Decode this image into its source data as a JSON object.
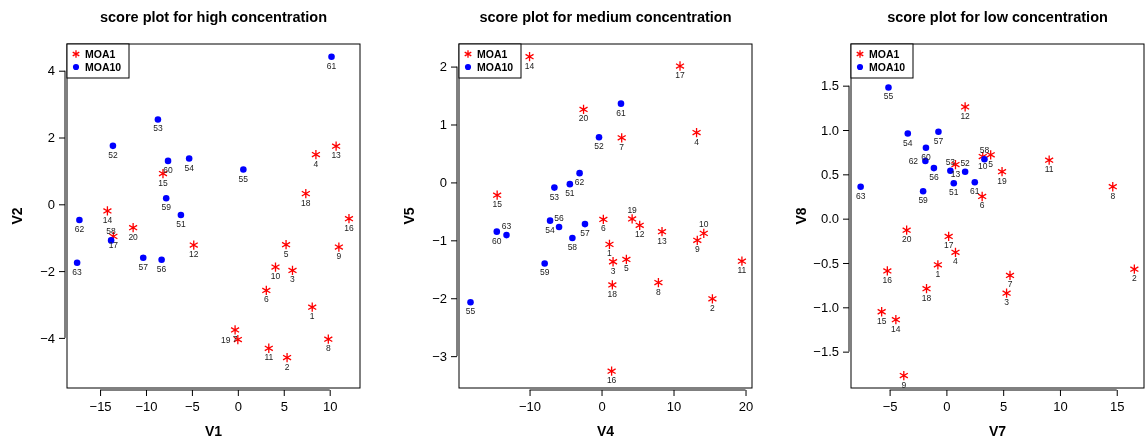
{
  "chart_data": [
    {
      "type": "scatter",
      "title": "score plot for high concentration",
      "xlabel": "V1",
      "ylabel": "V2",
      "xlim": [
        -18.6,
        13.3
      ],
      "ylim": [
        -5.5,
        4.8
      ],
      "xticks": [
        -15,
        -10,
        -5,
        0,
        5,
        10
      ],
      "yticks": [
        -4,
        -2,
        0,
        2,
        4
      ],
      "legend": "top left",
      "grid": false,
      "series": [
        {
          "name": "MOA1",
          "color": "#ff0000",
          "marker": "cross",
          "x": [
            8.1,
            5.36,
            5.95,
            8.5,
            5.25,
            3.1,
            -0.3,
            9.85,
            11.0,
            4.1,
            3.37,
            -4.8,
            10.7,
            -14.2,
            -8.15,
            12.1,
            -13.55,
            7.4,
            0.0,
            -11.4
          ],
          "values": [
            -3.08,
            -4.59,
            -1.98,
            1.49,
            -1.21,
            -2.58,
            -3.76,
            -4.04,
            -1.28,
            -1.88,
            -4.31,
            -1.22,
            1.74,
            -0.2,
            0.92,
            -0.43,
            -0.96,
            0.32,
            -4.05,
            -0.7
          ]
        },
        {
          "name": "MOA10",
          "color": "#0000ff",
          "marker": "circle",
          "x": [
            -6.2,
            -13.6,
            -8.7,
            -5.3,
            0.6,
            -8.3,
            -10.3,
            -13.8,
            -7.8,
            -7.6,
            10.2,
            -17.25,
            -17.5
          ],
          "values": [
            -0.32,
            1.75,
            2.54,
            1.37,
            1.04,
            -1.66,
            -1.6,
            -1.08,
            0.18,
            1.3,
            4.42,
            -0.47,
            -1.75
          ]
        }
      ],
      "annotations": [
        {
          "text": "1",
          "x": 8.1,
          "y": -3.08
        },
        {
          "text": "2",
          "x": 5.36,
          "y": -4.59
        },
        {
          "text": "3",
          "x": 5.95,
          "y": -1.98
        },
        {
          "text": "4",
          "x": 8.5,
          "y": 1.49
        },
        {
          "text": "5",
          "x": 5.25,
          "y": -1.21
        },
        {
          "text": "6",
          "x": 3.1,
          "y": -2.58
        },
        {
          "text": "7",
          "x": -0.3,
          "y": -3.76
        },
        {
          "text": "8",
          "x": 9.85,
          "y": -4.04
        },
        {
          "text": "9",
          "x": 11.0,
          "y": -1.28
        },
        {
          "text": "10",
          "x": 4.1,
          "y": -1.88
        },
        {
          "text": "11",
          "x": 3.37,
          "y": -4.31
        },
        {
          "text": "12",
          "x": -4.8,
          "y": -1.22
        },
        {
          "text": "13",
          "x": 10.7,
          "y": 1.74
        },
        {
          "text": "14",
          "x": -14.2,
          "y": -0.2
        },
        {
          "text": "15",
          "x": -8.15,
          "y": 0.92
        },
        {
          "text": "16",
          "x": 12.1,
          "y": -0.43
        },
        {
          "text": "17",
          "x": -13.55,
          "y": -0.96
        },
        {
          "text": "18",
          "x": 7.4,
          "y": 0.32
        },
        {
          "text": "19",
          "x": 0.0,
          "y": -4.05
        },
        {
          "text": "20",
          "x": -11.4,
          "y": -0.7
        },
        {
          "text": "51",
          "x": -6.2,
          "y": -0.32
        },
        {
          "text": "52",
          "x": -13.6,
          "y": 1.75
        },
        {
          "text": "53",
          "x": -8.7,
          "y": 2.54
        },
        {
          "text": "54",
          "x": -5.3,
          "y": 1.37
        },
        {
          "text": "55",
          "x": 0.6,
          "y": 1.04
        },
        {
          "text": "56",
          "x": -8.3,
          "y": -1.66
        },
        {
          "text": "57",
          "x": -10.3,
          "y": -1.6
        },
        {
          "text": "58",
          "x": -13.8,
          "y": -1.08
        },
        {
          "text": "59",
          "x": -7.8,
          "y": 0.18
        },
        {
          "text": "60",
          "x": -7.6,
          "y": 1.3
        },
        {
          "text": "61",
          "x": 10.2,
          "y": 4.42
        },
        {
          "text": "62",
          "x": -17.25,
          "y": -0.47
        },
        {
          "text": "63",
          "x": -17.5,
          "y": -1.75
        }
      ]
    },
    {
      "type": "scatter",
      "title": "score plot for medium concentration",
      "xlabel": "V4",
      "ylabel": "V5",
      "xlim": [
        -19.8,
        20.9
      ],
      "ylim": [
        -3.55,
        2.39
      ],
      "xticks": [
        -10,
        0,
        10,
        20
      ],
      "yticks": [
        -3,
        -2,
        -1,
        0,
        1,
        2
      ],
      "legend": "top left",
      "grid": false,
      "series": [
        {
          "name": "MOA1",
          "color": "#ff0000",
          "marker": "cross",
          "x": [
            1.1,
            15.4,
            1.6,
            13.2,
            3.45,
            0.25,
            2.8,
            7.9,
            13.3,
            14.2,
            19.5,
            5.3,
            8.4,
            -10.0,
            -14.5,
            1.4,
            10.9,
            1.5,
            4.25,
            -2.5
          ],
          "values": [
            -1.07,
            -2.01,
            -1.37,
            0.86,
            -1.33,
            -0.64,
            0.77,
            -1.73,
            -1.0,
            -0.88,
            -1.36,
            -0.74,
            -0.85,
            2.17,
            -0.22,
            -3.26,
            2.01,
            -1.77,
            -0.63,
            1.26
          ]
        },
        {
          "name": "MOA10",
          "color": "#0000ff",
          "marker": "circle",
          "x": [
            -4.4,
            -0.35,
            -6.55,
            -7.15,
            -18.2,
            -5.9,
            -2.3,
            -4.05,
            -7.9,
            -14.55,
            2.7,
            -3.05,
            -13.2
          ],
          "values": [
            -0.03,
            0.78,
            -0.09,
            -0.66,
            -2.07,
            -0.77,
            -0.72,
            -0.96,
            -1.4,
            -0.85,
            1.36,
            0.16,
            -0.91
          ]
        }
      ],
      "annotations": [
        {
          "text": "1",
          "x": 1.1,
          "y": -1.07
        },
        {
          "text": "2",
          "x": 15.4,
          "y": -2.01
        },
        {
          "text": "3",
          "x": 1.6,
          "y": -1.37
        },
        {
          "text": "4",
          "x": 13.2,
          "y": 0.86
        },
        {
          "text": "5",
          "x": 3.45,
          "y": -1.33
        },
        {
          "text": "6",
          "x": 0.25,
          "y": -0.64
        },
        {
          "text": "7",
          "x": 2.8,
          "y": 0.77
        },
        {
          "text": "8",
          "x": 7.9,
          "y": -1.73
        },
        {
          "text": "9",
          "x": 13.3,
          "y": -1.0
        },
        {
          "text": "10",
          "x": 14.2,
          "y": -0.88
        },
        {
          "text": "11",
          "x": 19.5,
          "y": -1.36
        },
        {
          "text": "12",
          "x": 5.3,
          "y": -0.74
        },
        {
          "text": "13",
          "x": 8.4,
          "y": -0.85
        },
        {
          "text": "14",
          "x": -10.0,
          "y": 2.17
        },
        {
          "text": "15",
          "x": -14.5,
          "y": -0.22
        },
        {
          "text": "16",
          "x": 1.4,
          "y": -3.26
        },
        {
          "text": "17",
          "x": 10.9,
          "y": 2.01
        },
        {
          "text": "18",
          "x": 1.5,
          "y": -1.77
        },
        {
          "text": "19",
          "x": 4.25,
          "y": -0.63
        },
        {
          "text": "20",
          "x": -2.5,
          "y": 1.26
        },
        {
          "text": "51",
          "x": -4.4,
          "y": -0.03
        },
        {
          "text": "52",
          "x": -0.35,
          "y": 0.78
        },
        {
          "text": "53",
          "x": -6.55,
          "y": -0.09
        },
        {
          "text": "54",
          "x": -7.15,
          "y": -0.66
        },
        {
          "text": "55",
          "x": -18.2,
          "y": -2.07
        },
        {
          "text": "56",
          "x": -5.9,
          "y": -0.77
        },
        {
          "text": "57",
          "x": -2.3,
          "y": -0.72
        },
        {
          "text": "58",
          "x": -4.05,
          "y": -0.96
        },
        {
          "text": "59",
          "x": -7.9,
          "y": -1.4
        },
        {
          "text": "60",
          "x": -14.55,
          "y": -0.85
        },
        {
          "text": "61",
          "x": 2.7,
          "y": 1.36
        },
        {
          "text": "62",
          "x": -3.05,
          "y": 0.16
        },
        {
          "text": "63",
          "x": -13.2,
          "y": -0.91
        }
      ]
    },
    {
      "type": "scatter",
      "title": "score plot for low concentration",
      "xlabel": "V7",
      "ylabel": "V8",
      "xlim": [
        -8.4,
        17.4
      ],
      "ylim": [
        -1.91,
        1.97
      ],
      "xticks": [
        -5,
        0,
        5,
        10,
        15
      ],
      "yticks": [
        {
          "value": -1.5,
          "label": "−1.5"
        },
        {
          "value": -1,
          "label": "−1.0"
        },
        {
          "value": -0.5,
          "label": "−0.5"
        },
        {
          "value": 0,
          "label": "0.0"
        },
        {
          "value": 0.5,
          "label": "0.5"
        },
        {
          "value": 1,
          "label": "1.0"
        },
        {
          "value": 1.5,
          "label": "1.5"
        }
      ],
      "legend": "top left",
      "grid": false,
      "series": [
        {
          "name": "MOA1",
          "color": "#ff0000",
          "marker": "cross",
          "x": [
            -0.75,
            16.55,
            5.3,
            0.8,
            3.9,
            3.15,
            5.6,
            14.65,
            -3.75,
            3.2,
            9.05,
            1.65,
            0.8,
            -4.45,
            -5.7,
            -5.2,
            0.2,
            -1.75,
            4.9,
            -3.5
          ],
          "values": [
            -0.52,
            -0.57,
            -0.84,
            -0.38,
            0.72,
            0.25,
            -0.64,
            0.36,
            -1.77,
            0.7,
            0.66,
            1.26,
            0.61,
            -1.14,
            -1.05,
            -0.59,
            -0.2,
            -0.79,
            0.53,
            -0.13
          ]
        },
        {
          "name": "MOA10",
          "color": "#0000ff",
          "marker": "circle",
          "x": [
            0.65,
            1.65,
            0.35,
            -3.4,
            -5.1,
            -1.1,
            -0.7,
            3.35,
            -2.05,
            -1.8,
            2.5,
            -1.85,
            -7.55
          ],
          "values": [
            0.4,
            0.53,
            0.54,
            0.96,
            1.48,
            0.57,
            0.98,
            0.67,
            0.31,
            0.8,
            0.41,
            0.65,
            0.36
          ]
        }
      ],
      "annotations": [
        {
          "text": "1",
          "x": -0.75,
          "y": -0.52
        },
        {
          "text": "2",
          "x": 16.55,
          "y": -0.57
        },
        {
          "text": "3",
          "x": 5.3,
          "y": -0.84
        },
        {
          "text": "4",
          "x": 0.8,
          "y": -0.38
        },
        {
          "text": "5",
          "x": 3.9,
          "y": 0.72
        },
        {
          "text": "6",
          "x": 3.15,
          "y": 0.25
        },
        {
          "text": "7",
          "x": 5.6,
          "y": -0.64
        },
        {
          "text": "8",
          "x": 14.65,
          "y": 0.36
        },
        {
          "text": "9",
          "x": -3.75,
          "y": -1.77
        },
        {
          "text": "10",
          "x": 3.2,
          "y": 0.7
        },
        {
          "text": "11",
          "x": 9.05,
          "y": 0.66
        },
        {
          "text": "12",
          "x": 1.65,
          "y": 1.26
        },
        {
          "text": "13",
          "x": 0.8,
          "y": 0.61
        },
        {
          "text": "14",
          "x": -4.45,
          "y": -1.14
        },
        {
          "text": "15",
          "x": -5.7,
          "y": -1.05
        },
        {
          "text": "16",
          "x": -5.2,
          "y": -0.59
        },
        {
          "text": "17",
          "x": 0.2,
          "y": -0.2
        },
        {
          "text": "18",
          "x": -1.75,
          "y": -0.79
        },
        {
          "text": "19",
          "x": 4.9,
          "y": 0.53
        },
        {
          "text": "20",
          "x": -3.5,
          "y": -0.13
        },
        {
          "text": "51",
          "x": 0.65,
          "y": 0.4
        },
        {
          "text": "52",
          "x": 1.65,
          "y": 0.53
        },
        {
          "text": "53",
          "x": 0.35,
          "y": 0.54
        },
        {
          "text": "54",
          "x": -3.4,
          "y": 0.96
        },
        {
          "text": "55",
          "x": -5.1,
          "y": 1.48
        },
        {
          "text": "56",
          "x": -1.1,
          "y": 0.57
        },
        {
          "text": "57",
          "x": -0.7,
          "y": 0.98
        },
        {
          "text": "58",
          "x": 3.35,
          "y": 0.67
        },
        {
          "text": "59",
          "x": -2.05,
          "y": 0.31
        },
        {
          "text": "60",
          "x": -1.8,
          "y": 0.8
        },
        {
          "text": "61",
          "x": 2.5,
          "y": 0.41
        },
        {
          "text": "62",
          "x": -1.85,
          "y": 0.65
        },
        {
          "text": "63",
          "x": -7.55,
          "y": 0.36
        }
      ]
    }
  ]
}
